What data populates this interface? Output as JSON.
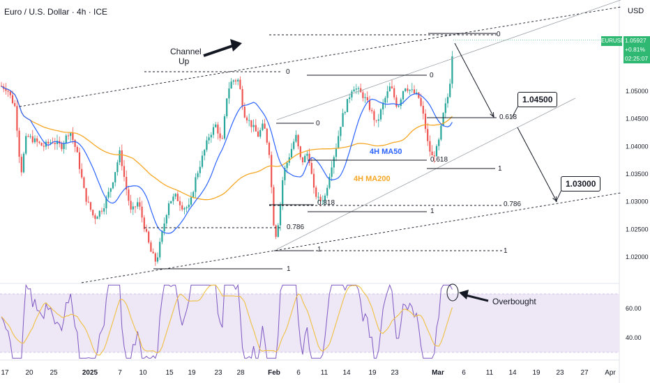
{
  "header": {
    "title": "Euro / U.S. Dollar · 4h · ICE",
    "currency": "USD"
  },
  "price_badge": {
    "symbol": "EURUSD",
    "price": "1.05927",
    "change": "+0.81%",
    "countdown": "02:25:07"
  },
  "colors": {
    "up": "#26a69a",
    "down": "#ef5350",
    "ma50": "#2962ff",
    "ma200": "#f5a623",
    "rsi": "#7e57c2",
    "rsi_ma": "#f0c040",
    "rsi_band": "#ede7f6"
  },
  "annotations": {
    "channel": "Channel\nUp",
    "channel_line1": "Channel",
    "channel_line2": "Up",
    "ma50_label": "4H MA50",
    "ma200_label": "4H MA200",
    "target1": "1.04500",
    "target2": "1.03000",
    "overbought": "Overbought"
  },
  "fib_labels": {
    "top_0": "0",
    "mid_0": "0",
    "feb_0": "0",
    "left_0": "0",
    "f618_right": "0.618",
    "f618_mid": "0.618",
    "f1_mid": "1",
    "f818": "0.818",
    "f1_low": "1",
    "f786_right": "0.786",
    "f786_left": "0.786",
    "f1_feb": "1",
    "f1_right": "1",
    "f1_jan": "1"
  },
  "chart_data": [
    {
      "type": "candlestick",
      "title": "Euro / U.S. Dollar · 4h · ICE",
      "y_unit": "USD",
      "y_ticks": [
        "1.05000",
        "1.04500",
        "1.04000",
        "1.03500",
        "1.03000",
        "1.02500",
        "1.02000"
      ],
      "y_range": [
        1.0165,
        1.064
      ],
      "x_ticks": [
        "17",
        "20",
        "25",
        "2025",
        "7",
        "10",
        "15",
        "19",
        "23",
        "28",
        "Feb",
        "6",
        "11",
        "14",
        "19",
        "23",
        "Mar",
        "6",
        "11",
        "14",
        "19",
        "23",
        "27",
        "Apr"
      ],
      "last_price": 1.05927,
      "series": [
        {
          "name": "4H MA50"
        },
        {
          "name": "4H MA200"
        }
      ],
      "levels": [
        1.045,
        1.03
      ]
    },
    {
      "type": "line",
      "indicator": "RSI",
      "y_ticks": [
        "60.00",
        "40.00"
      ],
      "y_range": [
        20,
        80
      ],
      "band": [
        30,
        70
      ],
      "annotation": "Overbought"
    }
  ]
}
